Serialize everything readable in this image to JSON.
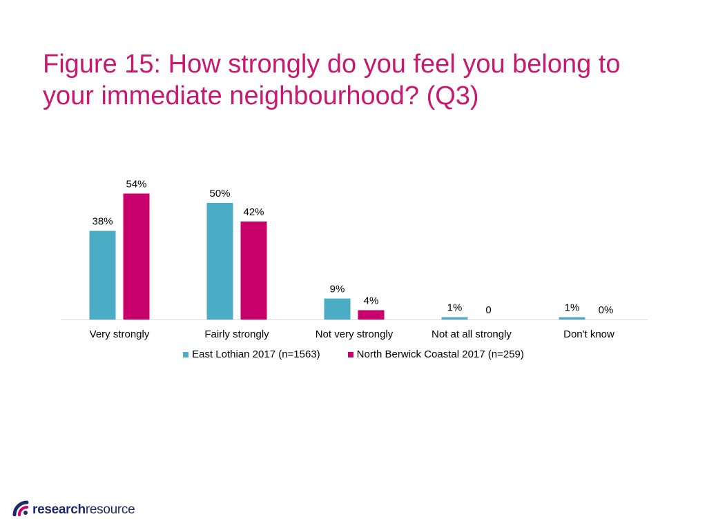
{
  "title": {
    "line1": "Figure 15: How strongly do you feel you belong to",
    "line2": "your immediate neighbourhood? (Q3)"
  },
  "colors": {
    "title": "#c8186f",
    "series_1": "#4bacc6",
    "series_2": "#c8006b",
    "baseline": "#d9d9d9"
  },
  "logo": {
    "icon": "research-resource-logo-icon",
    "text_bold": "research",
    "text_light": "resource"
  },
  "chart_data": {
    "type": "bar",
    "categories": [
      "Very strongly",
      "Fairly strongly",
      "Not very strongly",
      "Not at all strongly",
      "Don't know"
    ],
    "series": [
      {
        "name": "East Lothian 2017 (n=1563)",
        "values": [
          38,
          50,
          9,
          1,
          1
        ],
        "labels": [
          "38%",
          "50%",
          "9%",
          "1%",
          "1%"
        ]
      },
      {
        "name": "North Berwick Coastal 2017 (n=259)",
        "values": [
          54,
          42,
          4,
          0,
          0
        ],
        "labels": [
          "54%",
          "42%",
          "4%",
          "0",
          "0%"
        ]
      }
    ],
    "ylim": [
      0,
      60
    ],
    "grid": false,
    "legend_position": "bottom"
  }
}
